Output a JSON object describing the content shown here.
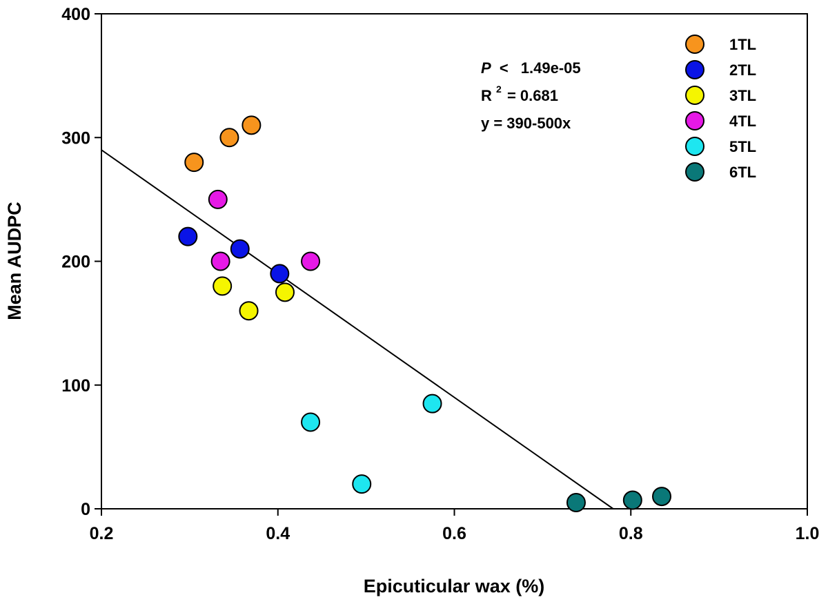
{
  "chart_data": {
    "type": "scatter",
    "title": "",
    "xlabel": "Epicuticular wax (%)",
    "ylabel": "Mean AUDPC",
    "xlim": [
      0.2,
      1.0
    ],
    "ylim": [
      0,
      400
    ],
    "x_ticks": [
      "0.2",
      "0.4",
      "0.6",
      "0.8",
      "1.0"
    ],
    "y_ticks": [
      "0",
      "100",
      "200",
      "300",
      "400"
    ],
    "grid": false,
    "legend_position": "top-right",
    "series": [
      {
        "name": "1TL",
        "color": "#f7941d",
        "points": [
          [
            0.305,
            280
          ],
          [
            0.345,
            300
          ],
          [
            0.37,
            310
          ]
        ]
      },
      {
        "name": "2TL",
        "color": "#0a14e6",
        "points": [
          [
            0.298,
            220
          ],
          [
            0.357,
            210
          ],
          [
            0.402,
            190
          ]
        ]
      },
      {
        "name": "3TL",
        "color": "#f5f500",
        "points": [
          [
            0.337,
            180
          ],
          [
            0.367,
            160
          ],
          [
            0.408,
            175
          ]
        ]
      },
      {
        "name": "4TL",
        "color": "#e619e6",
        "points": [
          [
            0.332,
            250
          ],
          [
            0.335,
            200
          ],
          [
            0.437,
            200
          ]
        ]
      },
      {
        "name": "5TL",
        "color": "#1ee6f0",
        "points": [
          [
            0.437,
            70
          ],
          [
            0.495,
            20
          ],
          [
            0.575,
            85
          ]
        ]
      },
      {
        "name": "6TL",
        "color": "#0a7878",
        "points": [
          [
            0.738,
            5
          ],
          [
            0.802,
            7
          ],
          [
            0.835,
            10
          ]
        ]
      }
    ],
    "regression": {
      "intercept": 390,
      "slope": -500
    },
    "annotations": {
      "p_label": "P",
      "p_operator": "<",
      "p_value": "1.49e-05",
      "r2_prefix": "R",
      "r2_superscript": "2",
      "r2_value": "= 0.681",
      "equation": "y = 390-500x"
    }
  }
}
